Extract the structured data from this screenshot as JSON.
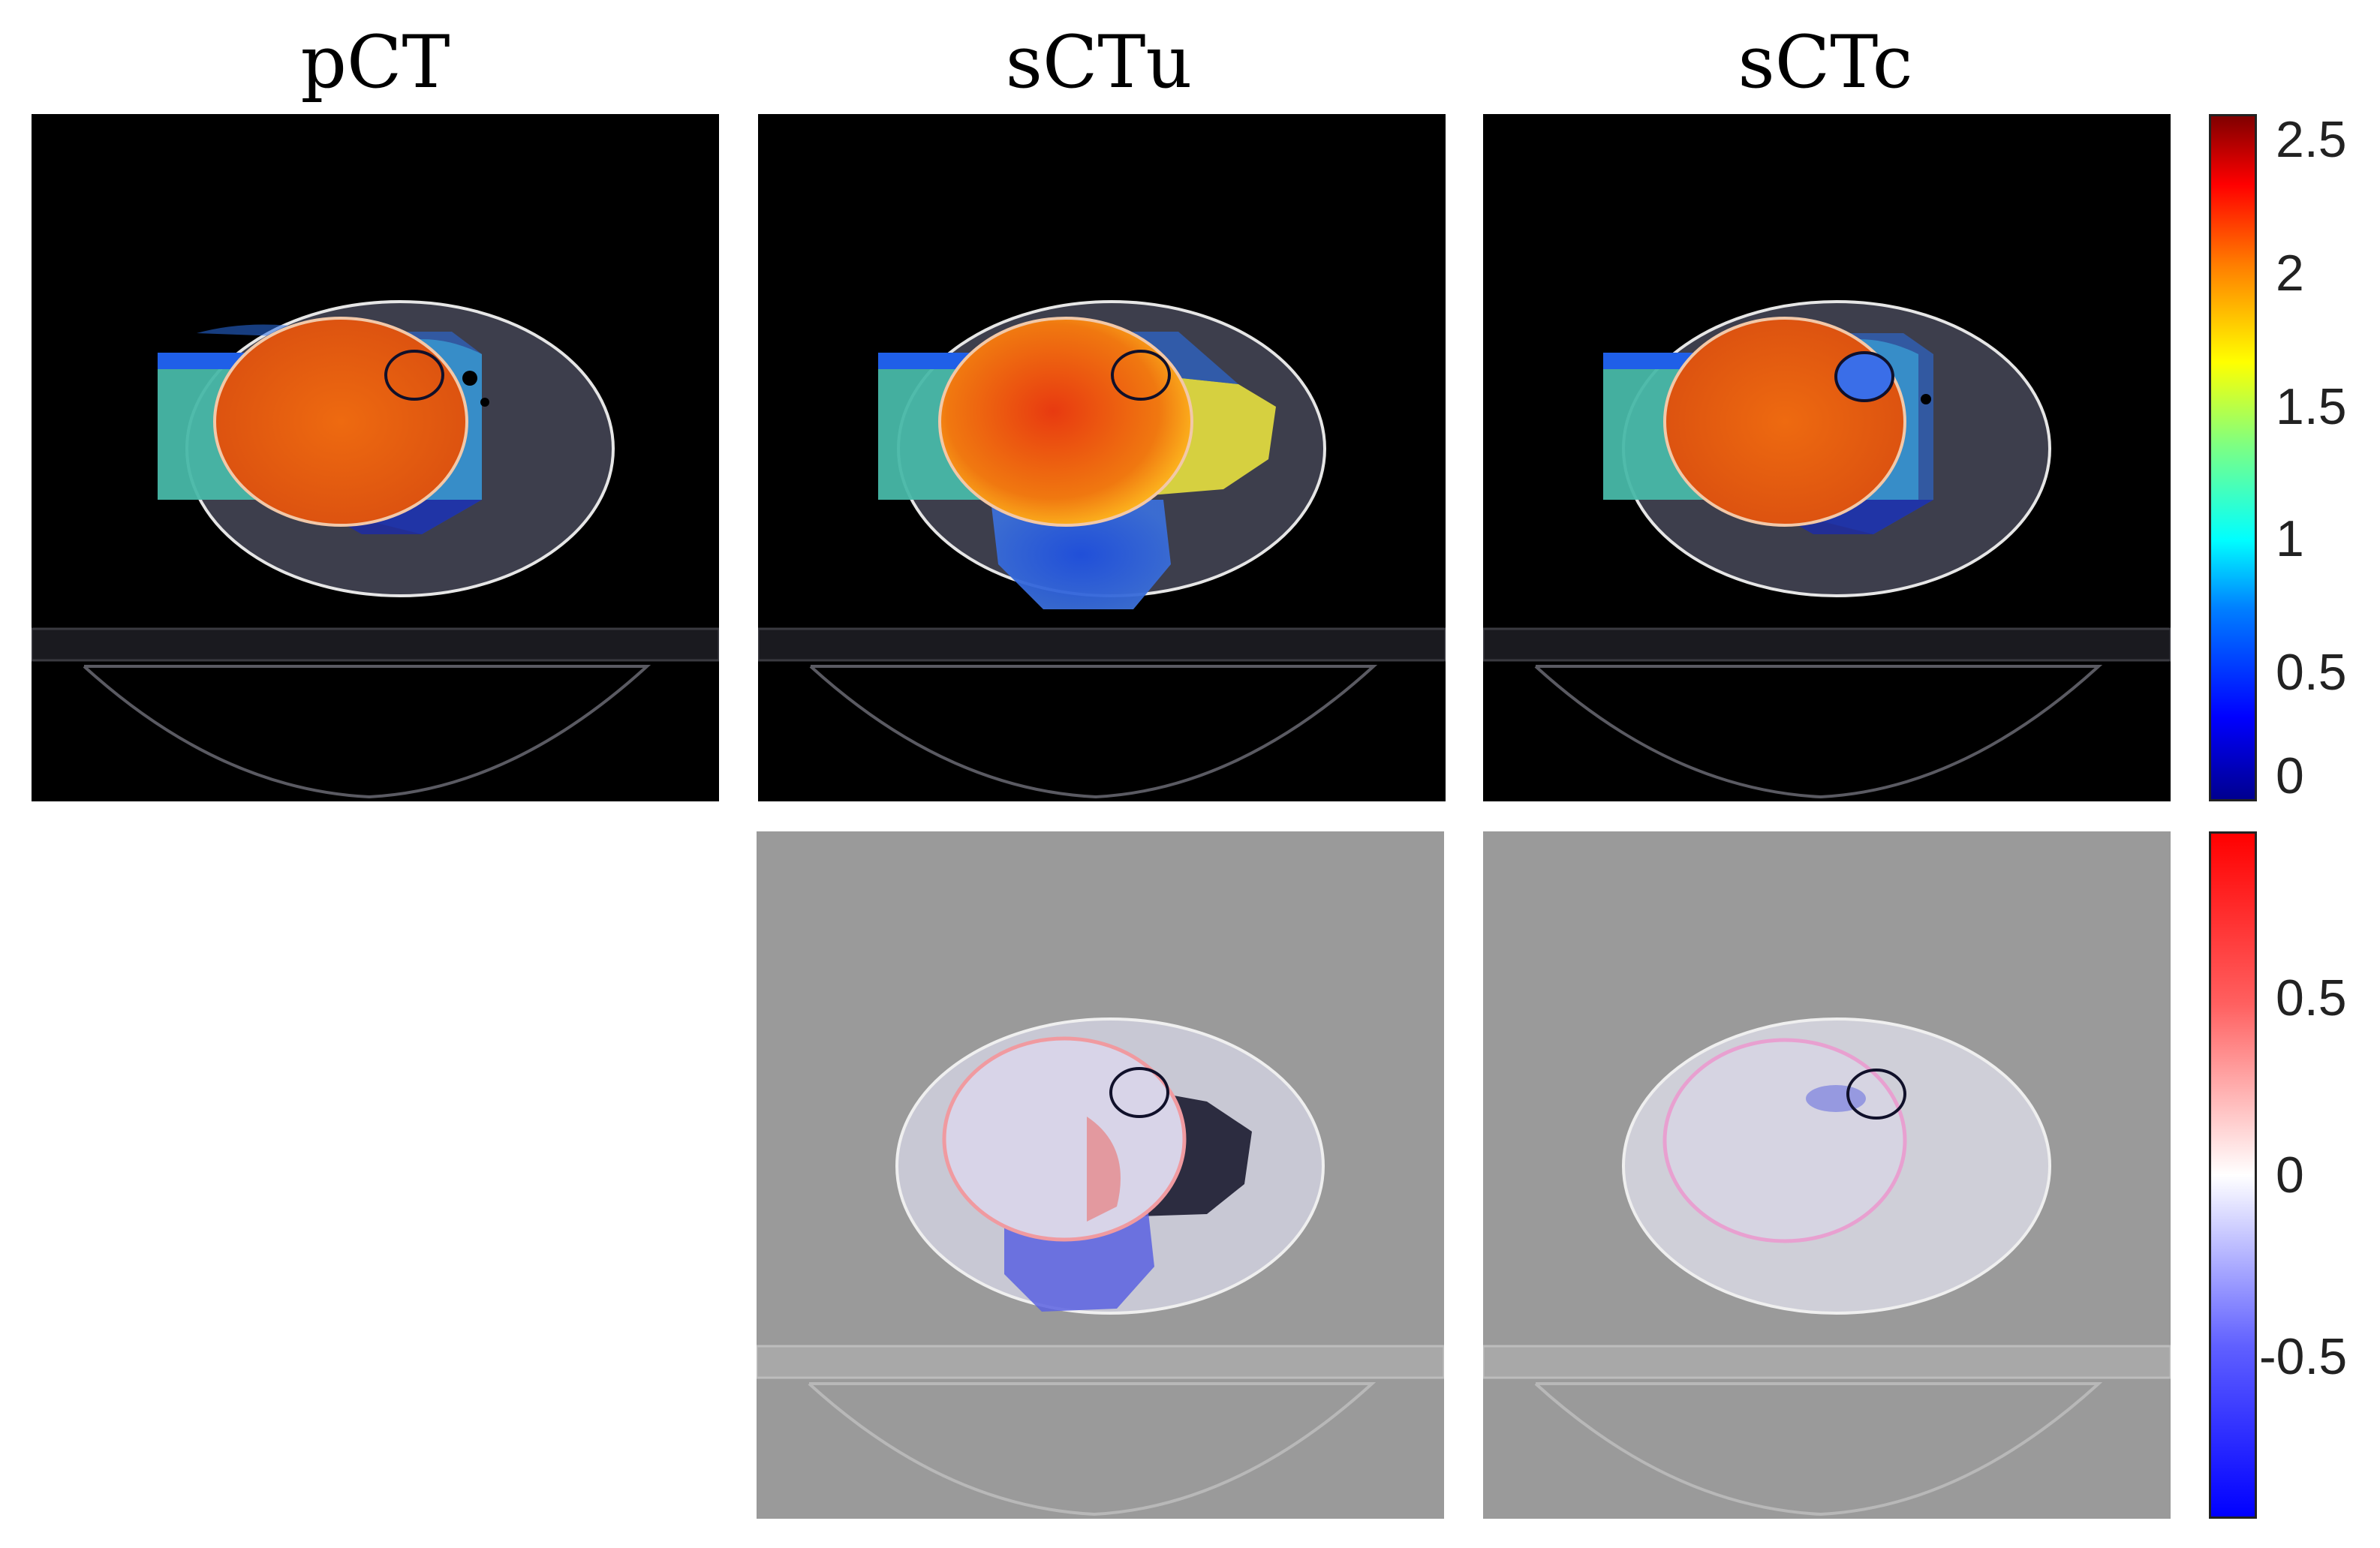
{
  "columns": [
    {
      "id": "pct",
      "title": "pCT"
    },
    {
      "id": "sctu",
      "title": "sCTu"
    },
    {
      "id": "sctc",
      "title": "sCTc"
    }
  ],
  "colorbars": {
    "dose": {
      "colormap": "jet",
      "range": [
        0,
        2.6
      ],
      "ticks": [
        "2.5",
        "2",
        "1.5",
        "1",
        "0.5",
        "0"
      ]
    },
    "difference": {
      "colormap": "blue-white-red",
      "range": [
        -0.95,
        0.95
      ],
      "ticks": [
        "0.5",
        "0",
        "-0.5"
      ]
    }
  },
  "colors": {
    "background_dose": "#000000",
    "background_diff": "#9a9a9a",
    "contour_body": "#e6e6e6",
    "contour_target": "#f2b8a0",
    "contour_oar": "#10102a"
  }
}
